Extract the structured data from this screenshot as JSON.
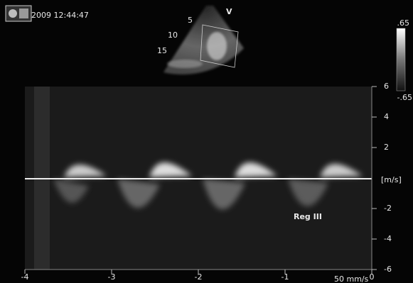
{
  "header": {
    "timestamp": "2009 12:44:47",
    "mode": "V"
  },
  "sector": {
    "depth_labels": [
      "5",
      "10",
      "15"
    ]
  },
  "colorbar": {
    "top": ".65",
    "bottom": "-.65"
  },
  "doppler": {
    "yticks": [
      6,
      4,
      2,
      -2,
      -4,
      -6
    ],
    "y_unit": "[m/s]",
    "xticks": [
      -4,
      -3,
      -2,
      -1,
      0
    ],
    "sweep_speed": "50 mm/s",
    "annotation": "Reg III"
  }
}
